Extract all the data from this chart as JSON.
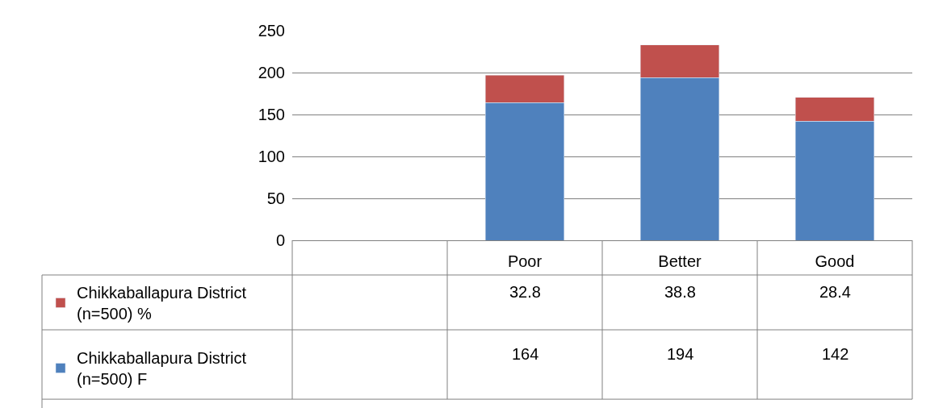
{
  "chart_data": {
    "type": "bar",
    "stacked": true,
    "categories": [
      null,
      "Poor",
      "Better",
      "Good"
    ],
    "series": [
      {
        "name": "Chikkaballapura District (n=500) F",
        "color": "#4f81bd",
        "values": [
          null,
          164,
          194,
          142
        ]
      },
      {
        "name": "Chikkaballapura District (n=500) %",
        "color": "#c0504d",
        "values": [
          null,
          32.8,
          38.8,
          28.4
        ]
      }
    ],
    "ylim": [
      0,
      250
    ],
    "yticks": [
      0,
      50,
      100,
      150,
      200,
      250
    ],
    "grid": "y",
    "legend": "bottom left",
    "data_labels": true
  }
}
